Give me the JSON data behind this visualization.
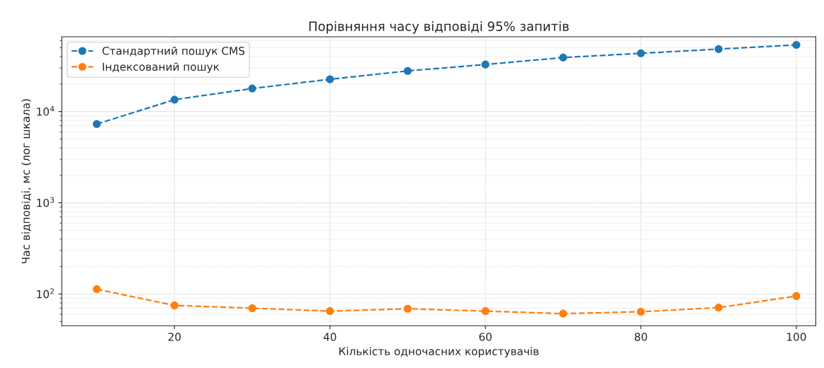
{
  "chart_data": {
    "type": "line",
    "title": "Порівняння часу відповіді 95% запитів",
    "xlabel": "Кількість одночасних користувачів",
    "ylabel": "Час відповіді, мс (лог шкала)",
    "x": [
      10,
      20,
      30,
      40,
      50,
      60,
      70,
      80,
      90,
      100
    ],
    "series": [
      {
        "name": "Стандартний пошук CMS",
        "color": "#1f77b4",
        "values": [
          7300,
          13500,
          17900,
          22600,
          27900,
          32800,
          39100,
          43500,
          48400,
          53800
        ]
      },
      {
        "name": "Індексований пошук",
        "color": "#ff7f0e",
        "values": [
          113,
          75,
          70,
          65,
          69,
          65,
          61,
          64,
          71,
          95
        ]
      }
    ],
    "log": "y",
    "xlim": [
      5.5,
      102.5
    ],
    "ylim": [
      45,
      66000
    ],
    "xticks": [
      20,
      40,
      60,
      80,
      100
    ],
    "yticks": [
      {
        "value": 100,
        "label": "10$^{2}$"
      },
      {
        "value": 1000,
        "label": "10$^{3}$"
      },
      {
        "value": 10000,
        "label": "10$^{4}$"
      }
    ],
    "grid": true,
    "legend": "top left",
    "marker": "circle",
    "line_style": "dashed"
  }
}
